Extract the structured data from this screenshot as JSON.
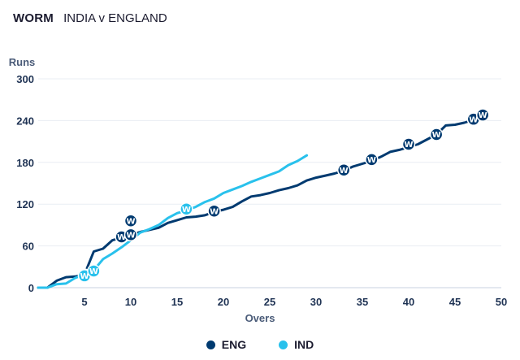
{
  "header": {
    "kind": "WORM",
    "match": "INDIA v ENGLAND"
  },
  "chart_data": {
    "type": "line",
    "title": "WORM",
    "subtitle": "INDIA v ENGLAND",
    "xlabel": "Overs",
    "ylabel": "Runs",
    "xlim": [
      0,
      50
    ],
    "ylim": [
      0,
      300
    ],
    "xticks": [
      5,
      10,
      15,
      20,
      25,
      30,
      35,
      40,
      45,
      50
    ],
    "yticks": [
      0,
      60,
      120,
      180,
      240,
      300
    ],
    "grid": "horizontal",
    "legend_position": "bottom-center",
    "wicket_marker": "W",
    "series": [
      {
        "name": "ENG",
        "color": "#003a70",
        "x": [
          0,
          1,
          2,
          3,
          4,
          5,
          6,
          7,
          8,
          9,
          10,
          11,
          12,
          13,
          14,
          15,
          16,
          17,
          18,
          19,
          20,
          21,
          22,
          23,
          24,
          25,
          26,
          27,
          28,
          29,
          30,
          31,
          32,
          33,
          34,
          35,
          36,
          37,
          38,
          39,
          40,
          41,
          42,
          43,
          44,
          45,
          46,
          47,
          48
        ],
        "y": [
          0,
          0,
          10,
          15,
          16,
          19,
          52,
          56,
          68,
          72,
          76,
          80,
          83,
          86,
          93,
          97,
          101,
          102,
          104,
          109,
          112,
          116,
          124,
          131,
          133,
          136,
          140,
          143,
          147,
          154,
          158,
          161,
          164,
          168,
          174,
          178,
          182,
          188,
          195,
          198,
          202,
          206,
          213,
          220,
          233,
          234,
          237,
          241,
          248
        ],
        "wickets": [
          [
            5,
            18
          ],
          [
            9,
            73
          ],
          [
            10,
            76
          ],
          [
            10,
            96
          ],
          [
            19,
            110
          ],
          [
            33,
            169
          ],
          [
            36,
            184
          ],
          [
            40,
            206
          ],
          [
            43,
            220
          ],
          [
            47,
            242
          ],
          [
            48,
            248
          ]
        ]
      },
      {
        "name": "IND",
        "color": "#29c1ec",
        "x": [
          0,
          1,
          2,
          3,
          4,
          5,
          6,
          7,
          8,
          9,
          10,
          11,
          12,
          13,
          14,
          15,
          16,
          17,
          18,
          19,
          20,
          21,
          22,
          23,
          24,
          25,
          26,
          27,
          28,
          29
        ],
        "y": [
          0,
          0,
          5,
          6,
          14,
          19,
          25,
          41,
          49,
          58,
          68,
          79,
          84,
          90,
          100,
          107,
          111,
          116,
          123,
          128,
          136,
          141,
          146,
          152,
          157,
          162,
          167,
          176,
          182,
          190
        ],
        "wickets": [
          [
            5,
            17
          ],
          [
            6,
            24
          ],
          [
            16,
            113
          ]
        ]
      }
    ]
  }
}
